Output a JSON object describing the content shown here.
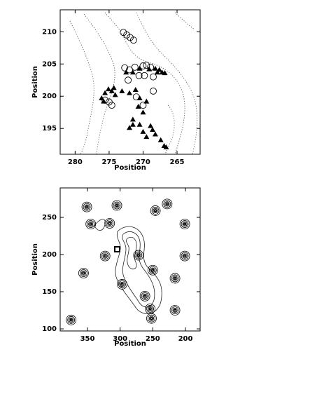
{
  "chart_data": [
    {
      "type": "scatter",
      "x_label": "Position",
      "y_label": "Position",
      "xlim": [
        282.2,
        261.6
      ],
      "ylim": [
        191,
        213.4
      ],
      "xticks": [
        280,
        275,
        270,
        265
      ],
      "yticks": [
        195,
        200,
        205,
        210
      ],
      "series": [
        {
          "marker": "circle",
          "color": "#000000",
          "x": [
            272.9,
            272.4,
            271.9,
            271.4,
            272.7,
            272.0,
            271.2,
            270.0,
            269.5,
            268.9,
            270.6,
            269.8,
            268.5,
            272.2,
            275.6,
            275.0,
            274.6,
            271.0,
            268.5,
            270.0
          ],
          "values": [
            209.9,
            209.5,
            209.1,
            208.7,
            204.4,
            204.1,
            204.5,
            204.7,
            204.8,
            204.5,
            203.2,
            203.2,
            203.0,
            202.5,
            199.4,
            199.1,
            198.6,
            199.9,
            200.8,
            198.6
          ]
        },
        {
          "marker": "triangle",
          "color": "#000000",
          "x": [
            272.5,
            271.5,
            270.5,
            269.1,
            268.2,
            267.6,
            267.2,
            266.8,
            267.9,
            275.1,
            274.6,
            274.1,
            275.6,
            276.1,
            275.8,
            274.3,
            273.1,
            272.0,
            271.1,
            270.5,
            269.5,
            270.7,
            270.0,
            271.5,
            270.5,
            268.9,
            271.5,
            272.0,
            270.0,
            268.6,
            268.2,
            267.4,
            266.9,
            266.6,
            269.5
          ],
          "values": [
            203.7,
            203.7,
            204.3,
            204.2,
            204.3,
            204.1,
            203.7,
            203.6,
            203.7,
            201.1,
            200.8,
            200.2,
            200.5,
            199.7,
            199.2,
            201.3,
            200.8,
            200.5,
            201.0,
            199.7,
            199.2,
            198.4,
            197.5,
            196.4,
            195.6,
            195.4,
            195.6,
            195.1,
            194.5,
            194.8,
            194.1,
            193.2,
            192.3,
            192.1,
            193.7
          ]
        }
      ]
    },
    {
      "type": "scatter",
      "x_label": "Position",
      "y_label": "Position",
      "xlim": [
        391.8,
        177.5
      ],
      "ylim": [
        97.2,
        289.6
      ],
      "xticks": [
        350,
        300,
        250,
        200
      ],
      "yticks": [
        100,
        150,
        200,
        250
      ],
      "series": [
        {
          "marker": "rings",
          "color": "#000000",
          "x": [
            305,
            351,
            228,
            246,
            345,
            316,
            201,
            323,
            272,
            201,
            356,
            250,
            297,
            216,
            262,
            254,
            216,
            375,
            252
          ],
          "values": [
            266,
            264,
            268,
            259,
            241,
            242,
            241,
            198,
            199,
            198,
            175,
            179,
            160,
            168,
            144,
            127,
            125,
            112,
            114
          ]
        }
      ]
    }
  ]
}
